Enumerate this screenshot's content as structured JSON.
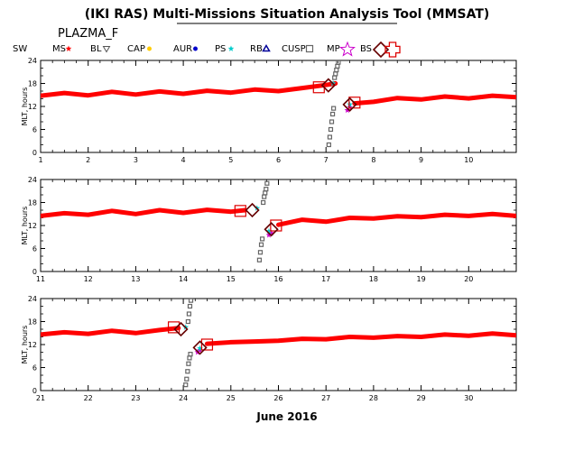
{
  "title": "(IKI RAS) Multi-Missions Situation Analysis Tool (MMSAT)",
  "subtitle": "PLAZMA_F",
  "legend": [
    {
      "label": "SW",
      "marker": "none",
      "color": "#000000"
    },
    {
      "label": "MS",
      "marker": "star",
      "color": "#ff0000"
    },
    {
      "label": "BL",
      "marker": "triangle-down",
      "color": "#555555"
    },
    {
      "label": "CAP",
      "marker": "dot",
      "color": "#ffcc00"
    },
    {
      "label": "AUR",
      "marker": "dot",
      "color": "#0000cc"
    },
    {
      "label": "PS",
      "marker": "star-small",
      "color": "#00cccc"
    },
    {
      "label": "RB",
      "marker": "triangle-up",
      "color": "#000099"
    },
    {
      "label": "CUSP",
      "marker": "square-open",
      "color": "#666666"
    },
    {
      "label": "MP",
      "marker": "star-open",
      "color": "#cc00cc"
    },
    {
      "label": "BS",
      "marker": "diamond-open",
      "color": "#660000"
    },
    {
      "label": "",
      "marker": "cross-open",
      "color": "#dd0000"
    }
  ],
  "colors": {
    "sw": "#ff0000",
    "bs": "#660000",
    "bs_box": "#dd0000",
    "cusp": "#666666",
    "ps": "#00cccc",
    "mp": "#cc00cc",
    "aur": "#0000cc"
  },
  "chart_data": {
    "type": "scatter",
    "xlabel": "June 2016",
    "ylabel": "MLT, hours",
    "ylim": [
      0,
      24
    ],
    "yticks": [
      0,
      6,
      12,
      18,
      24
    ],
    "grid": false,
    "panels": [
      {
        "xlim": [
          1,
          11
        ],
        "xticks": [
          1,
          2,
          3,
          4,
          5,
          6,
          7,
          8,
          9,
          10
        ],
        "sw_series": [
          [
            1,
            14.8
          ],
          [
            1.5,
            15.5
          ],
          [
            2,
            14.9
          ],
          [
            2.5,
            15.8
          ],
          [
            3,
            15.1
          ],
          [
            3.5,
            15.9
          ],
          [
            4,
            15.3
          ],
          [
            4.5,
            16.1
          ],
          [
            5,
            15.6
          ],
          [
            5.5,
            16.4
          ],
          [
            6,
            16.0
          ],
          [
            6.5,
            16.8
          ],
          [
            7,
            17.6
          ],
          [
            7.2,
            18.0
          ]
        ],
        "sw_series_after": [
          [
            7.6,
            12.8
          ],
          [
            8,
            13.2
          ],
          [
            8.5,
            14.2
          ],
          [
            9,
            13.8
          ],
          [
            9.5,
            14.6
          ],
          [
            10,
            14.1
          ],
          [
            10.5,
            14.8
          ],
          [
            11,
            14.4
          ]
        ],
        "cusp_points": [
          [
            7.06,
            2.0
          ],
          [
            7.08,
            4.0
          ],
          [
            7.1,
            6.0
          ],
          [
            7.12,
            8.0
          ],
          [
            7.14,
            10.0
          ],
          [
            7.16,
            11.5
          ],
          [
            7.18,
            19.5
          ],
          [
            7.2,
            20.5
          ],
          [
            7.22,
            21.5
          ],
          [
            7.24,
            22.5
          ],
          [
            7.26,
            23.5
          ]
        ],
        "ps_points": [
          [
            7.15,
            18.0
          ],
          [
            7.5,
            12.5
          ]
        ],
        "mp_points": [
          [
            7.45,
            11.0
          ],
          [
            7.5,
            11.8
          ]
        ],
        "bs_crossings": [
          [
            7.05,
            17.5
          ],
          [
            7.5,
            12.5
          ]
        ],
        "bs_boxes": [
          [
            6.85,
            17.0
          ],
          [
            7.6,
            13.0
          ]
        ]
      },
      {
        "xlim": [
          11,
          21
        ],
        "xticks": [
          11,
          12,
          13,
          14,
          15,
          16,
          17,
          18,
          19,
          20
        ],
        "sw_series": [
          [
            11,
            14.5
          ],
          [
            11.5,
            15.2
          ],
          [
            12,
            14.8
          ],
          [
            12.5,
            15.8
          ],
          [
            13,
            15.0
          ],
          [
            13.5,
            16.0
          ],
          [
            14,
            15.3
          ],
          [
            14.5,
            16.1
          ],
          [
            15,
            15.6
          ],
          [
            15.3,
            16.0
          ]
        ],
        "sw_series_after": [
          [
            16,
            12.2
          ],
          [
            16.5,
            13.5
          ],
          [
            17,
            13.0
          ],
          [
            17.5,
            14.0
          ],
          [
            18,
            13.8
          ],
          [
            18.5,
            14.4
          ],
          [
            19,
            14.2
          ],
          [
            19.5,
            14.8
          ],
          [
            20,
            14.5
          ],
          [
            20.5,
            15.0
          ],
          [
            21,
            14.5
          ]
        ],
        "cusp_points": [
          [
            15.6,
            3.0
          ],
          [
            15.62,
            5.0
          ],
          [
            15.64,
            7.0
          ],
          [
            15.66,
            8.5
          ],
          [
            15.68,
            18.0
          ],
          [
            15.7,
            19.5
          ],
          [
            15.72,
            20.5
          ],
          [
            15.74,
            21.5
          ],
          [
            15.76,
            23.0
          ]
        ],
        "ps_points": [
          [
            15.55,
            16.5
          ],
          [
            15.8,
            10.5
          ]
        ],
        "mp_points": [
          [
            15.8,
            9.5
          ],
          [
            15.85,
            10.0
          ]
        ],
        "bs_crossings": [
          [
            15.45,
            16.0
          ],
          [
            15.85,
            11.0
          ]
        ],
        "bs_boxes": [
          [
            15.2,
            15.8
          ],
          [
            15.95,
            12.0
          ]
        ]
      },
      {
        "xlim": [
          21,
          31
        ],
        "xticks": [
          21,
          22,
          23,
          24,
          25,
          26,
          27,
          28,
          29,
          30
        ],
        "sw_series": [
          [
            21,
            14.6
          ],
          [
            21.5,
            15.2
          ],
          [
            22,
            14.8
          ],
          [
            22.5,
            15.6
          ],
          [
            23,
            15.0
          ],
          [
            23.5,
            15.8
          ],
          [
            23.9,
            16.3
          ]
        ],
        "sw_series_after": [
          [
            24.5,
            12.2
          ],
          [
            25,
            12.6
          ],
          [
            25.5,
            12.8
          ],
          [
            26,
            13.0
          ],
          [
            26.5,
            13.5
          ],
          [
            27,
            13.4
          ],
          [
            27.5,
            14.0
          ],
          [
            28,
            13.8
          ],
          [
            28.5,
            14.2
          ],
          [
            29,
            14.0
          ],
          [
            29.5,
            14.6
          ],
          [
            30,
            14.3
          ],
          [
            30.5,
            14.9
          ],
          [
            31,
            14.4
          ]
        ],
        "cusp_points": [
          [
            24.05,
            1.5
          ],
          [
            24.07,
            3.0
          ],
          [
            24.09,
            5.0
          ],
          [
            24.11,
            7.0
          ],
          [
            24.13,
            8.5
          ],
          [
            24.15,
            9.5
          ],
          [
            24.1,
            18.0
          ],
          [
            24.12,
            20.0
          ],
          [
            24.14,
            22.0
          ],
          [
            24.16,
            23.5
          ]
        ],
        "ps_points": [
          [
            24.05,
            16.5
          ],
          [
            24.35,
            11.0
          ]
        ],
        "mp_points": [
          [
            24.3,
            10.0
          ],
          [
            24.35,
            10.5
          ]
        ],
        "bs_crossings": [
          [
            23.95,
            16.0
          ],
          [
            24.35,
            11.2
          ]
        ],
        "bs_boxes": [
          [
            23.8,
            16.5
          ],
          [
            24.5,
            12.0
          ]
        ]
      }
    ]
  }
}
